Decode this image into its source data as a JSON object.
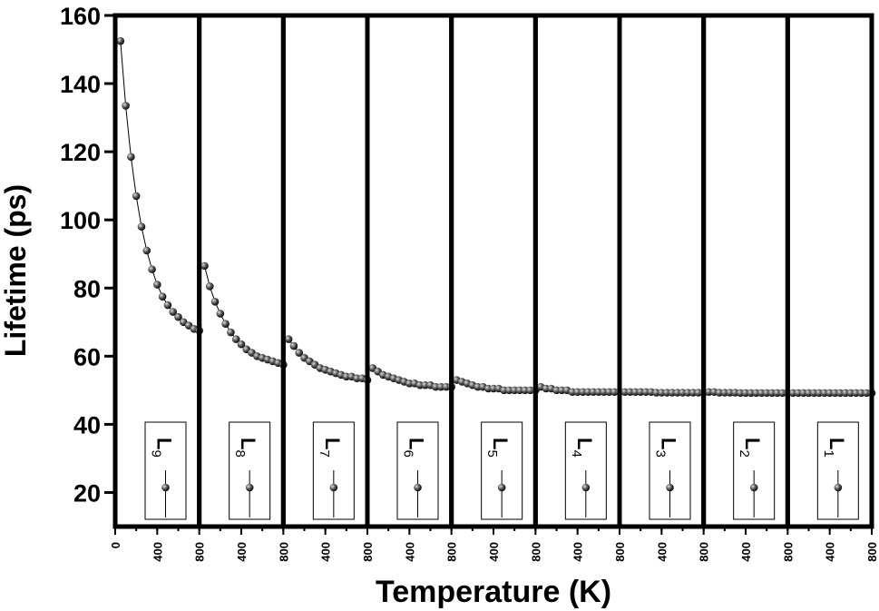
{
  "chart_data": [
    {
      "type": "line",
      "xlabel": "Temperature (K)",
      "ylabel": "Lifetime (ps)",
      "xlim": [
        0,
        800
      ],
      "xticks": [
        0,
        400,
        800
      ],
      "ylim": [
        10,
        160
      ],
      "yticks": [
        20,
        40,
        60,
        80,
        100,
        120,
        140,
        160
      ],
      "x": [
        50,
        100,
        150,
        200,
        250,
        300,
        350,
        400,
        450,
        500,
        550,
        600,
        650,
        700,
        750,
        800
      ],
      "series": [
        {
          "name": "L9",
          "color": "#000000",
          "values": [
            152.5,
            133.5,
            118.5,
            107,
            98,
            91,
            85.5,
            81,
            77.5,
            75,
            73,
            71.5,
            70,
            69,
            68,
            67.5
          ]
        }
      ]
    },
    {
      "type": "line",
      "xlim": [
        0,
        800
      ],
      "xticks": [
        400,
        800
      ],
      "ylim": [
        10,
        160
      ],
      "x": [
        50,
        100,
        150,
        200,
        250,
        300,
        350,
        400,
        450,
        500,
        550,
        600,
        650,
        700,
        750,
        800
      ],
      "series": [
        {
          "name": "L8",
          "color": "#000000",
          "values": [
            86.5,
            80.5,
            76,
            72.5,
            69.5,
            67,
            65,
            63.5,
            62,
            61,
            60,
            59.5,
            59,
            58.5,
            58,
            57.5
          ]
        }
      ]
    },
    {
      "type": "line",
      "xlim": [
        0,
        800
      ],
      "xticks": [
        400,
        800
      ],
      "ylim": [
        10,
        160
      ],
      "x": [
        50,
        100,
        150,
        200,
        250,
        300,
        350,
        400,
        450,
        500,
        550,
        600,
        650,
        700,
        750,
        800
      ],
      "series": [
        {
          "name": "L7",
          "color": "#000000",
          "values": [
            65,
            63,
            61,
            59.5,
            58.5,
            57.5,
            56.5,
            56,
            55.5,
            55,
            54.5,
            54,
            54,
            53.5,
            53.5,
            53
          ]
        }
      ]
    },
    {
      "type": "line",
      "xlim": [
        0,
        800
      ],
      "xticks": [
        400,
        800
      ],
      "ylim": [
        10,
        160
      ],
      "x": [
        50,
        100,
        150,
        200,
        250,
        300,
        350,
        400,
        450,
        500,
        550,
        600,
        650,
        700,
        750,
        800
      ],
      "series": [
        {
          "name": "L6",
          "color": "#000000",
          "values": [
            56.5,
            55.5,
            54.5,
            54,
            53.5,
            53,
            52.5,
            52,
            52,
            51.5,
            51.5,
            51.5,
            51,
            51,
            51,
            51
          ]
        }
      ]
    },
    {
      "type": "line",
      "xlim": [
        0,
        800
      ],
      "xticks": [
        400,
        800
      ],
      "ylim": [
        10,
        160
      ],
      "x": [
        50,
        100,
        150,
        200,
        250,
        300,
        350,
        400,
        450,
        500,
        550,
        600,
        650,
        700,
        750,
        800
      ],
      "series": [
        {
          "name": "L5",
          "color": "#000000",
          "values": [
            53,
            52.5,
            52,
            51.5,
            51,
            51,
            50.5,
            50.5,
            50.5,
            50,
            50,
            50,
            50,
            50,
            50,
            50
          ]
        }
      ]
    },
    {
      "type": "line",
      "xlim": [
        0,
        800
      ],
      "xticks": [
        400,
        800
      ],
      "ylim": [
        10,
        160
      ],
      "x": [
        50,
        100,
        150,
        200,
        250,
        300,
        350,
        400,
        450,
        500,
        550,
        600,
        650,
        700,
        750,
        800
      ],
      "series": [
        {
          "name": "L4",
          "color": "#000000",
          "values": [
            51,
            50.5,
            50.5,
            50,
            50,
            50,
            49.5,
            49.5,
            49.5,
            49.5,
            49.5,
            49.5,
            49.5,
            49.5,
            49.5,
            49.5
          ]
        }
      ]
    },
    {
      "type": "line",
      "xlim": [
        0,
        800
      ],
      "xticks": [
        400,
        800
      ],
      "ylim": [
        10,
        160
      ],
      "x": [
        50,
        100,
        150,
        200,
        250,
        300,
        350,
        400,
        450,
        500,
        550,
        600,
        650,
        700,
        750,
        800
      ],
      "series": [
        {
          "name": "L3",
          "color": "#000000",
          "values": [
            49.5,
            49.5,
            49.5,
            49.5,
            49.5,
            49.5,
            49.3,
            49.3,
            49.3,
            49.3,
            49.3,
            49.3,
            49.3,
            49.3,
            49.3,
            49.3
          ]
        }
      ]
    },
    {
      "type": "line",
      "xlim": [
        0,
        800
      ],
      "xticks": [
        400,
        800
      ],
      "ylim": [
        10,
        160
      ],
      "x": [
        50,
        100,
        150,
        200,
        250,
        300,
        350,
        400,
        450,
        500,
        550,
        600,
        650,
        700,
        750,
        800
      ],
      "series": [
        {
          "name": "L2",
          "color": "#000000",
          "values": [
            49.5,
            49.5,
            49.3,
            49.3,
            49.3,
            49.3,
            49.2,
            49.2,
            49.2,
            49.2,
            49.2,
            49.2,
            49.2,
            49.2,
            49.2,
            49.2
          ]
        }
      ]
    },
    {
      "type": "line",
      "xlim": [
        0,
        800
      ],
      "xticks": [
        400,
        800
      ],
      "ylim": [
        10,
        160
      ],
      "x": [
        50,
        100,
        150,
        200,
        250,
        300,
        350,
        400,
        450,
        500,
        550,
        600,
        650,
        700,
        750,
        800
      ],
      "series": [
        {
          "name": "L1",
          "color": "#000000",
          "values": [
            49.2,
            49.2,
            49.2,
            49.2,
            49.2,
            49.2,
            49.2,
            49.2,
            49.2,
            49.2,
            49.2,
            49.2,
            49.2,
            49.2,
            49.2,
            49.2
          ]
        }
      ]
    }
  ]
}
